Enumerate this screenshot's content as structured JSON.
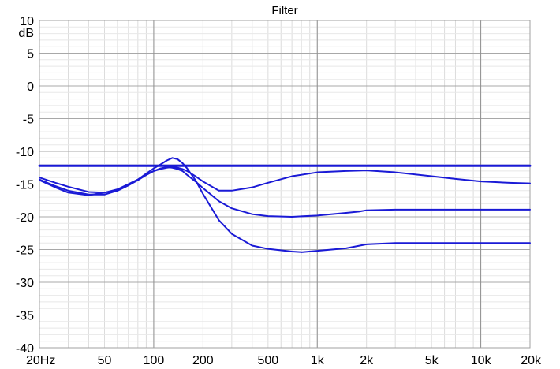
{
  "chart_data": {
    "type": "line",
    "title": "Filter",
    "xlabel": "",
    "ylabel": "",
    "y_unit_label": "dB",
    "x_scale": "log",
    "xlim": [
      20,
      20000
    ],
    "ylim": [
      -40,
      10
    ],
    "grid": true,
    "x_ticks": [
      {
        "value": 20,
        "label": "20Hz"
      },
      {
        "value": 50,
        "label": "50"
      },
      {
        "value": 100,
        "label": "100"
      },
      {
        "value": 200,
        "label": "200"
      },
      {
        "value": 500,
        "label": "500"
      },
      {
        "value": 1000,
        "label": "1k"
      },
      {
        "value": 2000,
        "label": "2k"
      },
      {
        "value": 5000,
        "label": "5k"
      },
      {
        "value": 10000,
        "label": "10k"
      },
      {
        "value": 20000,
        "label": "20k"
      }
    ],
    "y_ticks": [
      {
        "value": 10,
        "label": "10"
      },
      {
        "value": 5,
        "label": "5"
      },
      {
        "value": 0,
        "label": "0"
      },
      {
        "value": -5,
        "label": "-5"
      },
      {
        "value": -10,
        "label": "-10"
      },
      {
        "value": -15,
        "label": "-15"
      },
      {
        "value": -20,
        "label": "-20"
      },
      {
        "value": -25,
        "label": "-25"
      },
      {
        "value": -30,
        "label": "-30"
      },
      {
        "value": -35,
        "label": "-35"
      },
      {
        "value": -40,
        "label": "-40"
      }
    ],
    "series": [
      {
        "color": "#1a1ad6",
        "x": [
          20,
          20000
        ],
        "y": [
          -12.2,
          -12.2
        ]
      },
      {
        "color": "#1a1ad6",
        "x": [
          20,
          25,
          30,
          40,
          50,
          60,
          70,
          80,
          90,
          100,
          110,
          120,
          130,
          140,
          150,
          160,
          180,
          200,
          250,
          300,
          400,
          500,
          700,
          1000,
          1500,
          2000,
          3000,
          5000,
          7000,
          10000,
          15000,
          20000
        ],
        "y": [
          -14.0,
          -14.8,
          -15.4,
          -16.2,
          -16.3,
          -16.0,
          -15.2,
          -14.4,
          -13.6,
          -13.0,
          -12.7,
          -12.5,
          -12.4,
          -12.5,
          -12.7,
          -13.0,
          -13.8,
          -14.6,
          -16.0,
          -16.0,
          -15.5,
          -14.8,
          -13.8,
          -13.2,
          -13.0,
          -12.9,
          -13.2,
          -13.8,
          -14.2,
          -14.6,
          -14.8,
          -14.9
        ]
      },
      {
        "color": "#1a1ad6",
        "x": [
          20,
          25,
          30,
          40,
          50,
          60,
          70,
          80,
          90,
          100,
          110,
          120,
          130,
          140,
          150,
          160,
          180,
          200,
          250,
          300,
          400,
          500,
          700,
          1000,
          1500,
          1800,
          2000,
          3000,
          5000,
          10000,
          20000
        ],
        "y": [
          -14.4,
          -15.5,
          -16.3,
          -16.7,
          -16.3,
          -15.8,
          -15.0,
          -14.3,
          -13.6,
          -13.0,
          -12.6,
          -12.4,
          -12.5,
          -12.7,
          -13.0,
          -13.6,
          -14.6,
          -15.6,
          -17.6,
          -18.7,
          -19.6,
          -19.9,
          -20.0,
          -19.8,
          -19.4,
          -19.2,
          -19.0,
          -18.9,
          -18.9,
          -18.9,
          -18.9
        ]
      },
      {
        "color": "#1a1ad6",
        "x": [
          20,
          25,
          30,
          40,
          50,
          60,
          70,
          80,
          90,
          100,
          110,
          120,
          130,
          140,
          150,
          160,
          180,
          200,
          250,
          300,
          400,
          500,
          700,
          800,
          1000,
          1500,
          2000,
          3000,
          5000,
          10000,
          20000
        ],
        "y": [
          -14.3,
          -15.3,
          -16.0,
          -16.6,
          -16.6,
          -16.0,
          -15.2,
          -14.3,
          -13.4,
          -12.6,
          -12.0,
          -11.4,
          -11.0,
          -11.2,
          -11.8,
          -12.6,
          -14.4,
          -16.5,
          -20.5,
          -22.6,
          -24.4,
          -24.9,
          -25.3,
          -25.4,
          -25.2,
          -24.8,
          -24.2,
          -24.0,
          -24.0,
          -24.0,
          -24.0
        ]
      }
    ]
  }
}
